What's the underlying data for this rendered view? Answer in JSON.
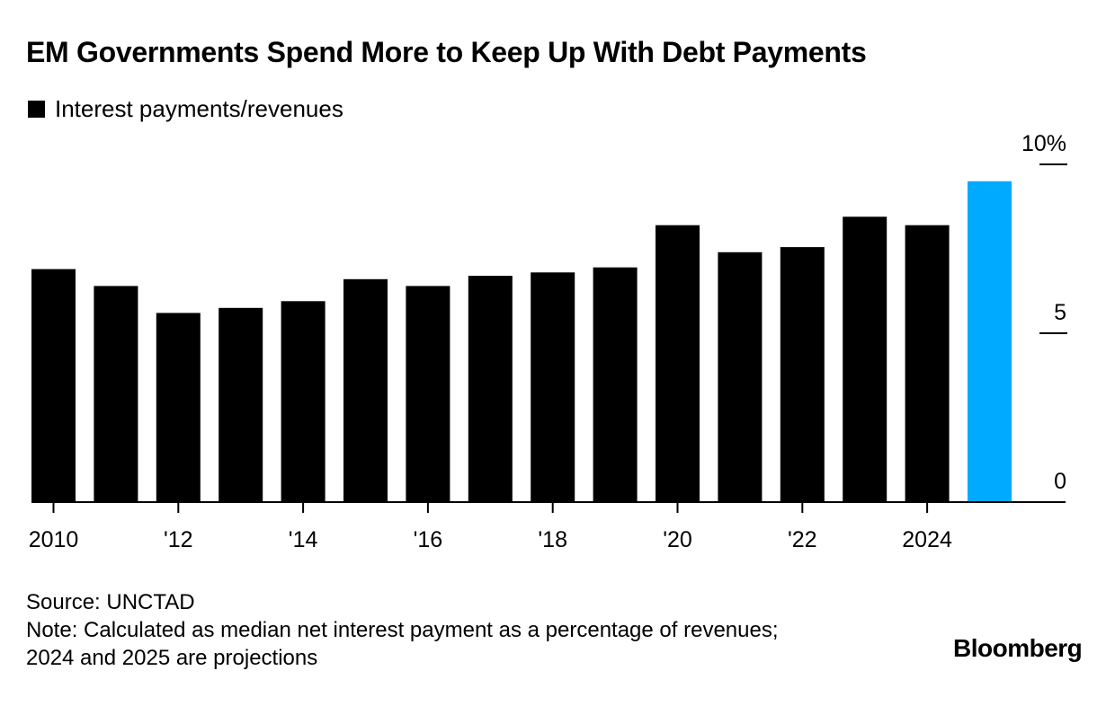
{
  "chart_data": {
    "type": "bar",
    "title": "EM Governments Spend More to Keep Up With Debt Payments",
    "legend": [
      {
        "label": "Interest payments/revenues",
        "color": "#000000"
      }
    ],
    "categories": [
      "2010",
      "2011",
      "2012",
      "2013",
      "2014",
      "2015",
      "2016",
      "2017",
      "2018",
      "2019",
      "2020",
      "2021",
      "2022",
      "2023",
      "2024",
      "2025"
    ],
    "values": [
      6.9,
      6.4,
      5.6,
      5.75,
      5.95,
      6.6,
      6.4,
      6.7,
      6.8,
      6.95,
      8.2,
      7.4,
      7.55,
      8.45,
      8.2,
      9.5
    ],
    "bar_colors": [
      "#000000",
      "#000000",
      "#000000",
      "#000000",
      "#000000",
      "#000000",
      "#000000",
      "#000000",
      "#000000",
      "#000000",
      "#000000",
      "#000000",
      "#000000",
      "#000000",
      "#000000",
      "#00aaff"
    ],
    "xtick_labels": [
      {
        "category": "2010",
        "label": "2010"
      },
      {
        "category": "2012",
        "label": "'12"
      },
      {
        "category": "2014",
        "label": "'14"
      },
      {
        "category": "2016",
        "label": "'16"
      },
      {
        "category": "2018",
        "label": "'18"
      },
      {
        "category": "2020",
        "label": "'20"
      },
      {
        "category": "2022",
        "label": "'22"
      },
      {
        "category": "2024",
        "label": "2024"
      }
    ],
    "yticks": [
      {
        "value": 0,
        "label": "0"
      },
      {
        "value": 5,
        "label": "5"
      },
      {
        "value": 10,
        "label": "10%"
      }
    ],
    "ylim": [
      0,
      10
    ],
    "xlabel": "",
    "ylabel": "",
    "y_axis_position": "right",
    "grid": false
  },
  "footer": {
    "source": "Source: UNCTAD",
    "note_line1": "Note: Calculated as median net interest payment as a percentage of revenues;",
    "note_line2": "2024 and 2025 are projections"
  },
  "brand": "Bloomberg"
}
